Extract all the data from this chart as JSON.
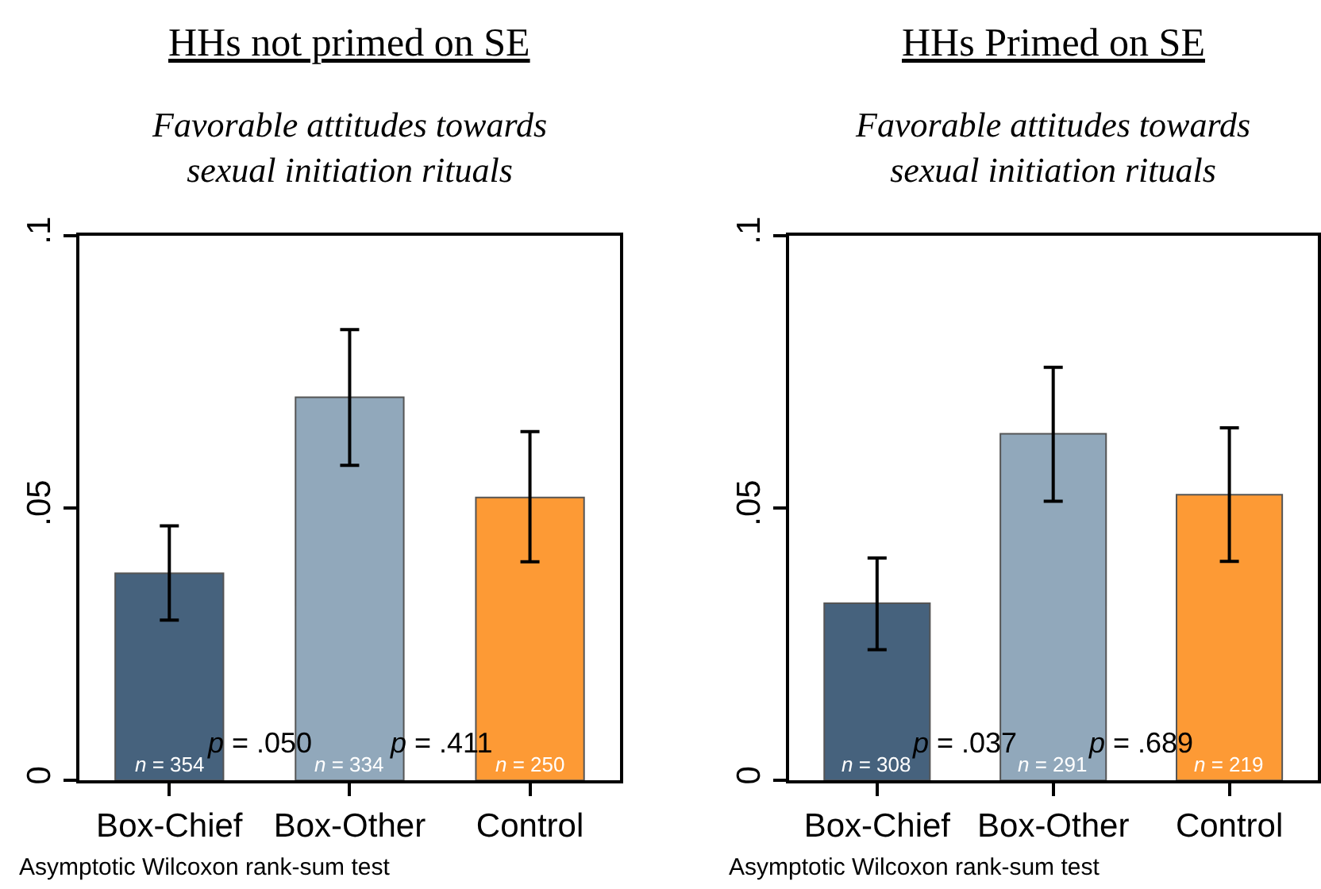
{
  "chart_data": [
    {
      "type": "bar",
      "title": "HHs not primed on SE",
      "subtitle": "Favorable attitudes towards\nsexual initiation rituals",
      "categories": [
        "Box-Chief",
        "Box-Other",
        "Control"
      ],
      "values": [
        0.038,
        0.0703,
        0.0519
      ],
      "colors": [
        "#46627d",
        "#91a8bb",
        "#fd9a35"
      ],
      "errors": [
        [
          0.0294,
          0.0467
        ],
        [
          0.0578,
          0.0827
        ],
        [
          0.0401,
          0.064
        ]
      ],
      "ylim": [
        0,
        0.1
      ],
      "yticks": [
        {
          "value": 0,
          "label": "0"
        },
        {
          "value": 0.05,
          "label": ".05"
        },
        {
          "value": 0.1,
          "label": ".1"
        }
      ],
      "annotations": [
        {
          "text": "n = 354",
          "x": "Box-Chief",
          "y": 0
        },
        {
          "text": "n = 334",
          "x": "Box-Other",
          "y": 0
        },
        {
          "text": "n = 250",
          "x": "Control",
          "y": 0
        },
        "p = .050",
        "p = .411",
        "Asymptotic Wilcoxon rank-sum test"
      ]
    },
    {
      "type": "bar",
      "title": "HHs Primed on SE",
      "subtitle": "Favorable attitudes towards\nsexual initiation rituals",
      "categories": [
        "Box-Chief",
        "Box-Other",
        "Control"
      ],
      "values": [
        0.0325,
        0.0636,
        0.0524
      ],
      "colors": [
        "#46627d",
        "#91a8bb",
        "#fd9a35"
      ],
      "errors": [
        [
          0.024,
          0.0408
        ],
        [
          0.0512,
          0.0758
        ],
        [
          0.0402,
          0.0647
        ]
      ],
      "ylim": [
        0,
        0.1
      ],
      "yticks": [
        {
          "value": 0,
          "label": "0"
        },
        {
          "value": 0.05,
          "label": ".05"
        },
        {
          "value": 0.1,
          "label": ".1"
        }
      ],
      "annotations": [
        {
          "text": "n = 308",
          "x": "Box-Chief",
          "y": 0
        },
        {
          "text": "n = 291",
          "x": "Box-Other",
          "y": 0
        },
        {
          "text": "n = 219",
          "x": "Control",
          "y": 0
        },
        "p = .037",
        "p = .689",
        "Asymptotic Wilcoxon rank-sum test"
      ]
    }
  ]
}
